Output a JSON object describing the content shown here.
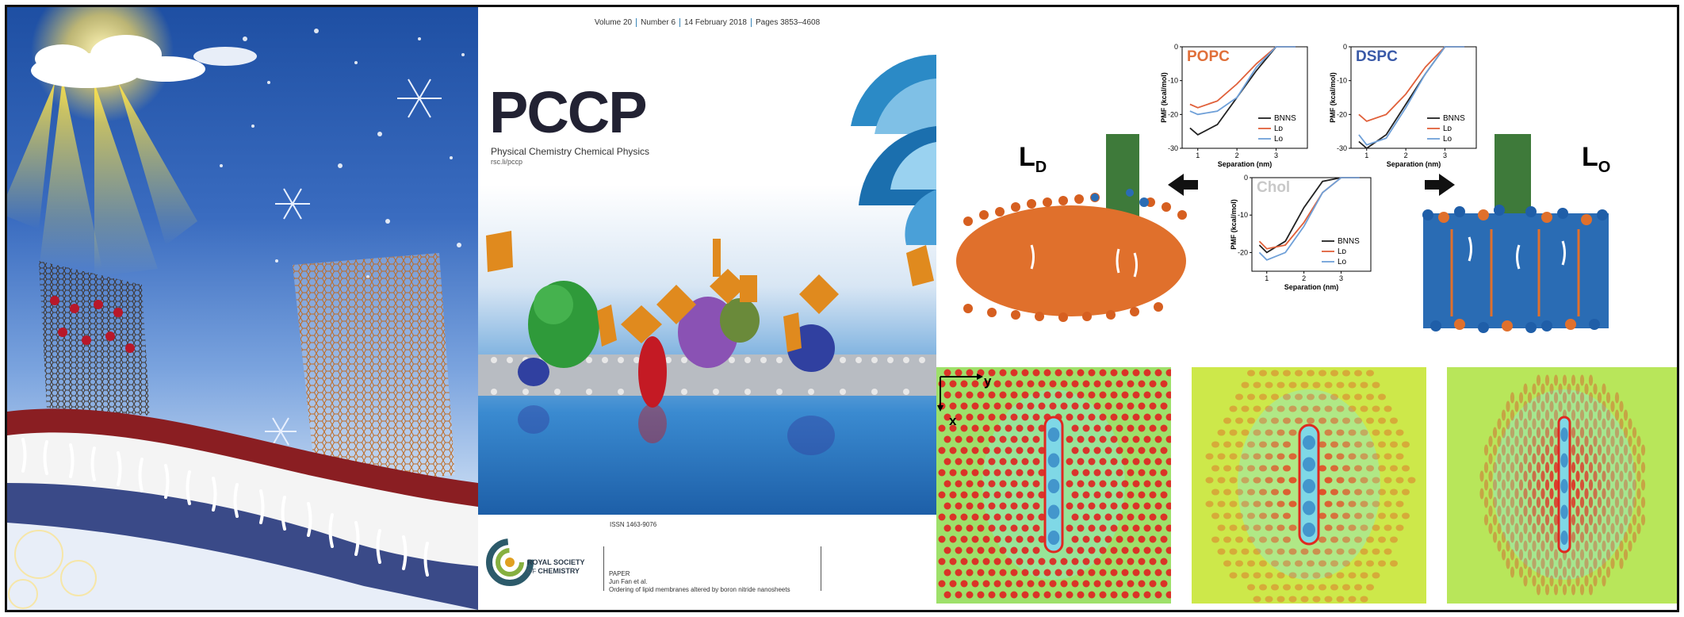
{
  "cover": {
    "volume": "Volume 20",
    "number": "Number 6",
    "date": "14 February 2018",
    "pages": "Pages 3853–4608",
    "logo": "PCCP",
    "subtitle": "Physical Chemistry Chemical Physics",
    "url": "rsc.li/pccp",
    "issn": "ISSN 1463-9076",
    "publisher_line1": "ROYAL SOCIETY",
    "publisher_line2": "OF",
    "publisher_line3": "CHEMISTRY",
    "paper_label": "PAPER",
    "author": "Jun Fan et al.",
    "paper_title": "Ordering of lipid membranes altered by boron nitride nanosheets"
  },
  "pmf_figure": {
    "phase_left": "L",
    "phase_left_sub": "D",
    "phase_right": "L",
    "phase_right_sub": "O",
    "colors": {
      "bnns": "#222222",
      "ld": "#e0603a",
      "lo": "#6fa0d8",
      "lipid_orange": "#e0702c",
      "lipid_blue": "#2a6cb4",
      "sheet_green": "#3e7a3a"
    }
  },
  "chart_data": [
    {
      "type": "line",
      "title": "POPC",
      "xlabel": "Separation (nm)",
      "ylabel": "PMF (kcal/mol)",
      "xticks": [
        "1",
        "2",
        "3"
      ],
      "yticks": [
        "0",
        "-10",
        "-20",
        "-30"
      ],
      "xlim": [
        0.6,
        3.8
      ],
      "ylim": [
        -30,
        0
      ],
      "legend": [
        "BNNS",
        "Lᴅ",
        "Lᴏ"
      ],
      "series": [
        {
          "name": "BNNS",
          "x": [
            0.8,
            1.0,
            1.5,
            2.0,
            2.5,
            3.0,
            3.5
          ],
          "y": [
            -24,
            -26,
            -23,
            -15,
            -7,
            0,
            0
          ]
        },
        {
          "name": "Lᴅ",
          "x": [
            0.8,
            1.0,
            1.5,
            2.0,
            2.5,
            3.0,
            3.5
          ],
          "y": [
            -17,
            -18,
            -16,
            -11,
            -5,
            0,
            0
          ]
        },
        {
          "name": "Lᴏ",
          "x": [
            0.8,
            1.0,
            1.5,
            2.0,
            2.5,
            3.0,
            3.5
          ],
          "y": [
            -19,
            -20,
            -19,
            -15,
            -6,
            0,
            0
          ]
        }
      ]
    },
    {
      "type": "line",
      "title": "DSPC",
      "xlabel": "Separation (nm)",
      "ylabel": "PMF (kcal/mol)",
      "xticks": [
        "1",
        "2",
        "3"
      ],
      "yticks": [
        "0",
        "-10",
        "-20",
        "-30"
      ],
      "xlim": [
        0.6,
        3.8
      ],
      "ylim": [
        -30,
        0
      ],
      "legend": [
        "BNNS",
        "Lᴅ",
        "Lᴏ"
      ],
      "series": [
        {
          "name": "BNNS",
          "x": [
            0.8,
            1.0,
            1.5,
            2.0,
            2.5,
            3.0,
            3.5
          ],
          "y": [
            -28,
            -30,
            -26,
            -17,
            -8,
            0,
            0
          ]
        },
        {
          "name": "Lᴅ",
          "x": [
            0.8,
            1.0,
            1.5,
            2.0,
            2.5,
            3.0,
            3.5
          ],
          "y": [
            -20,
            -22,
            -20,
            -14,
            -6,
            0,
            0
          ]
        },
        {
          "name": "Lᴏ",
          "x": [
            0.8,
            1.0,
            1.5,
            2.0,
            2.5,
            3.0,
            3.5
          ],
          "y": [
            -26,
            -29,
            -27,
            -18,
            -8,
            0,
            0
          ]
        }
      ]
    },
    {
      "type": "line",
      "title": "Chol",
      "xlabel": "Separation (nm)",
      "ylabel": "PMF (kcal/mol)",
      "xticks": [
        "1",
        "2",
        "3"
      ],
      "yticks": [
        "0",
        "-10",
        "-20"
      ],
      "xlim": [
        0.6,
        3.8
      ],
      "ylim": [
        -25,
        0
      ],
      "legend": [
        "BNNS",
        "Lᴅ",
        "Lᴏ"
      ],
      "series": [
        {
          "name": "BNNS",
          "x": [
            0.8,
            1.0,
            1.5,
            2.0,
            2.5,
            3.0,
            3.5
          ],
          "y": [
            -18,
            -20,
            -17,
            -8,
            -1,
            0,
            0
          ]
        },
        {
          "name": "Lᴅ",
          "x": [
            0.8,
            1.0,
            1.5,
            2.0,
            2.5,
            3.0,
            3.5
          ],
          "y": [
            -17,
            -19,
            -18,
            -12,
            -4,
            0,
            0
          ]
        },
        {
          "name": "Lᴏ",
          "x": [
            0.8,
            1.0,
            1.5,
            2.0,
            2.5,
            3.0,
            3.5
          ],
          "y": [
            -20,
            -22,
            -20,
            -13,
            -4,
            0,
            0
          ]
        }
      ]
    }
  ],
  "heatmaps": {
    "axis_y": "y",
    "axis_x": "x"
  }
}
